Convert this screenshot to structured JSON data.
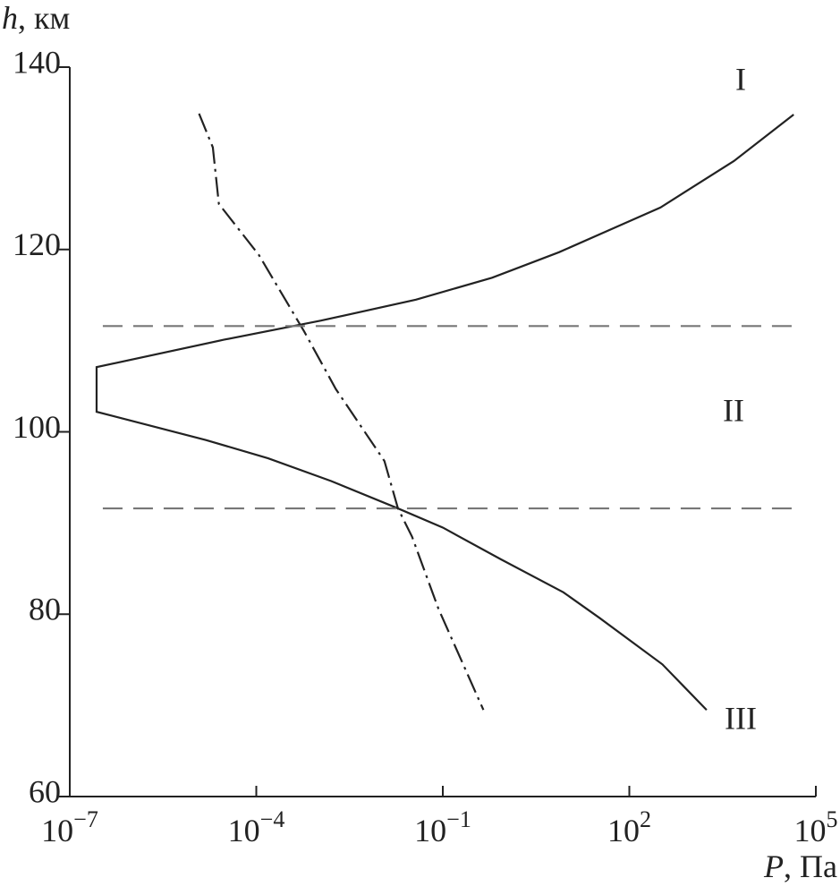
{
  "chart_data": {
    "type": "line",
    "ylabel_symbol": "h",
    "ylabel_unit": ", км",
    "xlabel_symbol": "P",
    "xlabel_unit": ", Па",
    "xscale": "log",
    "xlim": [
      1e-07,
      100000
    ],
    "ylim": [
      60,
      140
    ],
    "xticks": [
      {
        "value": 1e-07,
        "label": "10",
        "power": "−7"
      },
      {
        "value": 0.0001,
        "label": "10",
        "power": "−4"
      },
      {
        "value": 0.1,
        "label": "10",
        "power": "−1"
      },
      {
        "value": 100,
        "label": "10",
        "power": "2"
      },
      {
        "value": 100000,
        "label": "10",
        "power": "5"
      }
    ],
    "yticks": [
      60,
      80,
      100,
      120,
      140
    ],
    "annotations": [
      "I",
      "II",
      "III"
    ],
    "series": [
      {
        "style": "solid",
        "color": "#222222",
        "x": [
          44000,
          4800,
          316,
          7.4,
          0.62,
          0.037,
          0.0011,
          3e-05,
          2.7e-07,
          2.7e-07,
          1.55e-05,
          0.000155,
          0.0016,
          0.019,
          0.1,
          0.87,
          8.7,
          33,
          340,
          1750
        ],
        "values": [
          134.8,
          129.7,
          124.6,
          119.7,
          116.9,
          114.5,
          112.2,
          110.1,
          107.1,
          102.2,
          99.1,
          97.1,
          94.6,
          91.6,
          89.5,
          86.0,
          82.4,
          79.6,
          74.5,
          69.5
        ]
      },
      {
        "style": "dashdot",
        "color": "#222222",
        "x": [
          1.2e-05,
          2e-05,
          2.5e-05,
          0.00011,
          0.00059,
          0.0019,
          0.0115,
          0.019,
          0.032,
          0.085,
          0.45
        ],
        "values": [
          134.9,
          131.2,
          125,
          119.4,
          111,
          104.7,
          96.8,
          91.6,
          88.5,
          80.6,
          69.5
        ]
      },
      {
        "style": "dashed",
        "color": "#777777",
        "x": [
          3.4e-07,
          48000
        ],
        "values": [
          111.6,
          111.6
        ]
      },
      {
        "style": "dashed",
        "color": "#777777",
        "x": [
          3.4e-07,
          48000
        ],
        "values": [
          91.6,
          91.6
        ]
      }
    ]
  }
}
